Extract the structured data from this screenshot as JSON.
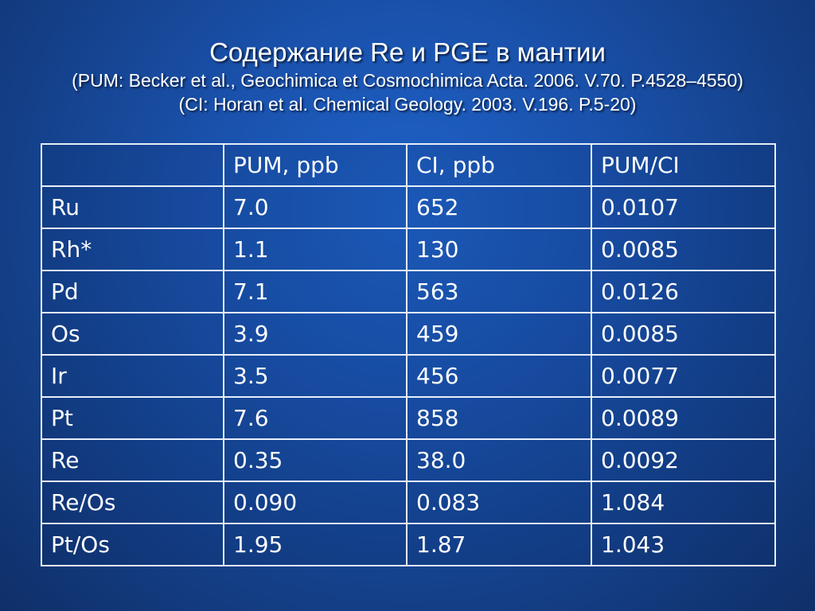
{
  "slide": {
    "title": "Содержание Re и PGE в мантии",
    "ref_pum": "(PUM: Becker et al., Geochimica et Cosmochimica Acta. 2006. V.70. P.4528–4550)",
    "ref_ci": "(CI: Horan et al. Chemical Geology. 2003. V.196. P.5-20)"
  },
  "table": {
    "headers": [
      "",
      "PUM, ppb",
      "CI, ppb",
      "PUM/CI"
    ],
    "rows": [
      [
        "Ru",
        "7.0",
        "652",
        "0.0107"
      ],
      [
        "Rh*",
        "1.1",
        "130",
        "0.0085"
      ],
      [
        "Pd",
        "7.1",
        "563",
        "0.0126"
      ],
      [
        "Os",
        "3.9",
        "459",
        "0.0085"
      ],
      [
        "Ir",
        "3.5",
        "456",
        "0.0077"
      ],
      [
        "Pt",
        "7.6",
        "858",
        "0.0089"
      ],
      [
        "Re",
        "0.35",
        "38.0",
        "0.0092"
      ],
      [
        "Re/Os",
        "0.090",
        "0.083",
        "1.084"
      ],
      [
        "Pt/Os",
        "1.95",
        "1.87",
        "1.043"
      ]
    ]
  },
  "colors": {
    "background": "#1a52ad",
    "text": "#ffffff",
    "grid": "#e8eef8"
  }
}
